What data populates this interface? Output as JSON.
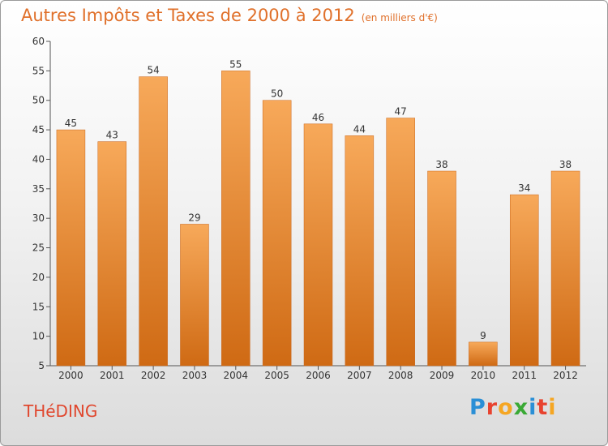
{
  "header": {
    "title": "Autres Impôts et Taxes de 2000 à 2012",
    "unit": "(en milliers d'€)"
  },
  "commune": "THéDING",
  "brand": {
    "letters": [
      "P",
      "r",
      "o",
      "x",
      "i",
      "t",
      "i"
    ],
    "colors": [
      "#2a8fd6",
      "#e8432f",
      "#f5a623",
      "#3aa935",
      "#2a8fd6",
      "#e8432f",
      "#f5a623"
    ]
  },
  "colors": {
    "bar_light": "#f7a95a",
    "bar_dark": "#cf6a14",
    "title": "#e0702a",
    "commune": "#e0472e"
  },
  "chart_data": {
    "type": "bar",
    "title": "Autres Impôts et Taxes de 2000 à 2012",
    "subtitle": "(en milliers d'€)",
    "categories": [
      "2000",
      "2001",
      "2002",
      "2003",
      "2004",
      "2005",
      "2006",
      "2007",
      "2008",
      "2009",
      "2010",
      "2011",
      "2012"
    ],
    "values": [
      45,
      43,
      54,
      29,
      55,
      50,
      46,
      44,
      47,
      38,
      9,
      34,
      38
    ],
    "ylim": [
      5,
      60
    ],
    "yticks": [
      5,
      10,
      15,
      20,
      25,
      30,
      35,
      40,
      45,
      50,
      55,
      60
    ],
    "grid": false,
    "legend": "none"
  }
}
